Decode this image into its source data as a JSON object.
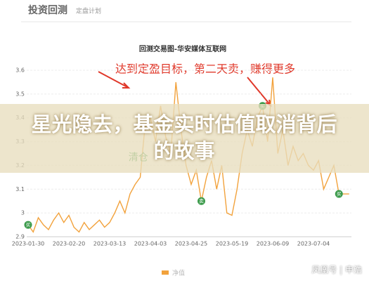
{
  "header": {
    "title": "投资回测",
    "subtitle": "定盘计划"
  },
  "chart_data": {
    "type": "line",
    "title": "回测交易图-华安媒体互联网",
    "annotation": "达到定盈目标，第二天卖，赚得更多",
    "marker_labels": [
      "买",
      "卖",
      "买",
      "买",
      "清仓"
    ],
    "legend": "净值",
    "categories": [
      "2023-01-30",
      null,
      null,
      null,
      null,
      null,
      null,
      null,
      "2023-02-20",
      null,
      null,
      null,
      null,
      null,
      null,
      null,
      "2023-03-13",
      null,
      null,
      null,
      null,
      null,
      null,
      null,
      "2023-04-03",
      null,
      null,
      null,
      null,
      null,
      null,
      null,
      "2023-04-25",
      null,
      null,
      null,
      null,
      null,
      null,
      null,
      "2023-05-19",
      null,
      null,
      null,
      null,
      null,
      null,
      null,
      "2023-06-09",
      null,
      null,
      null,
      null,
      null,
      null,
      null,
      "2023-07-04",
      null,
      null,
      null,
      null,
      null,
      null,
      null
    ],
    "series": [
      {
        "name": "净值",
        "color": "#f2a23c",
        "values": [
          2.95,
          2.92,
          2.98,
          2.95,
          2.93,
          2.97,
          3.0,
          2.96,
          2.99,
          2.94,
          2.92,
          2.96,
          2.93,
          2.95,
          2.97,
          2.94,
          2.96,
          3.0,
          3.05,
          3.0,
          3.08,
          3.12,
          3.15,
          3.38,
          3.4,
          3.3,
          3.45,
          3.32,
          3.25,
          3.55,
          3.35,
          3.2,
          3.12,
          3.18,
          3.05,
          3.15,
          3.22,
          3.1,
          3.2,
          3.0,
          2.99,
          3.1,
          3.25,
          3.35,
          3.28,
          3.4,
          3.45,
          3.3,
          3.57,
          3.25,
          3.35,
          3.2,
          3.28,
          3.22,
          3.25,
          3.2,
          3.18,
          3.22,
          3.1,
          3.15,
          3.2,
          3.08,
          3.08,
          3.08
        ]
      }
    ],
    "ylim": [
      2.9,
      3.6
    ],
    "yticks": [
      2.9,
      3,
      3.1,
      3.2,
      3.3,
      3.4,
      3.5,
      3.6
    ],
    "grid": true
  },
  "overlay": {
    "headline": "星光隐去，基金实时估值取消背后的故事"
  },
  "watermark": "凤凰号 | 申浩"
}
